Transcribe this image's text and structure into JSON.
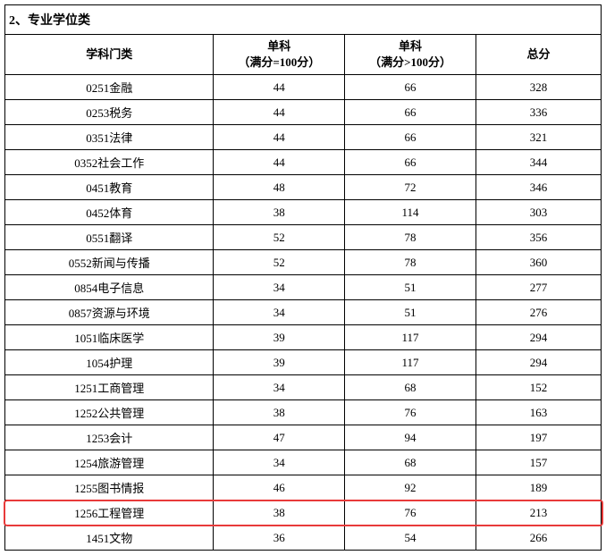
{
  "section_title": "2、专业学位类",
  "headers": {
    "subject": "学科门类",
    "score1_l1": "单科",
    "score1_l2": "（满分=100分）",
    "score2_l1": "单科",
    "score2_l2": "（满分>100分）",
    "total": "总分"
  },
  "rows": [
    {
      "subject": "0251金融",
      "s1": "44",
      "s2": "66",
      "total": "328",
      "hl": false
    },
    {
      "subject": "0253税务",
      "s1": "44",
      "s2": "66",
      "total": "336",
      "hl": false
    },
    {
      "subject": "0351法律",
      "s1": "44",
      "s2": "66",
      "total": "321",
      "hl": false
    },
    {
      "subject": "0352社会工作",
      "s1": "44",
      "s2": "66",
      "total": "344",
      "hl": false
    },
    {
      "subject": "0451教育",
      "s1": "48",
      "s2": "72",
      "total": "346",
      "hl": false
    },
    {
      "subject": "0452体育",
      "s1": "38",
      "s2": "114",
      "total": "303",
      "hl": false
    },
    {
      "subject": "0551翻译",
      "s1": "52",
      "s2": "78",
      "total": "356",
      "hl": false
    },
    {
      "subject": "0552新闻与传播",
      "s1": "52",
      "s2": "78",
      "total": "360",
      "hl": false
    },
    {
      "subject": "0854电子信息",
      "s1": "34",
      "s2": "51",
      "total": "277",
      "hl": false
    },
    {
      "subject": "0857资源与环境",
      "s1": "34",
      "s2": "51",
      "total": "276",
      "hl": false
    },
    {
      "subject": "1051临床医学",
      "s1": "39",
      "s2": "117",
      "total": "294",
      "hl": false
    },
    {
      "subject": "1054护理",
      "s1": "39",
      "s2": "117",
      "total": "294",
      "hl": false
    },
    {
      "subject": "1251工商管理",
      "s1": "34",
      "s2": "68",
      "total": "152",
      "hl": false
    },
    {
      "subject": "1252公共管理",
      "s1": "38",
      "s2": "76",
      "total": "163",
      "hl": false
    },
    {
      "subject": "1253会计",
      "s1": "47",
      "s2": "94",
      "total": "197",
      "hl": false
    },
    {
      "subject": "1254旅游管理",
      "s1": "34",
      "s2": "68",
      "total": "157",
      "hl": false
    },
    {
      "subject": "1255图书情报",
      "s1": "46",
      "s2": "92",
      "total": "189",
      "hl": false
    },
    {
      "subject": "1256工程管理",
      "s1": "38",
      "s2": "76",
      "total": "213",
      "hl": true
    },
    {
      "subject": "1451文物",
      "s1": "36",
      "s2": "54",
      "total": "266",
      "hl": false
    }
  ],
  "highlight_color": "#e83a3a"
}
